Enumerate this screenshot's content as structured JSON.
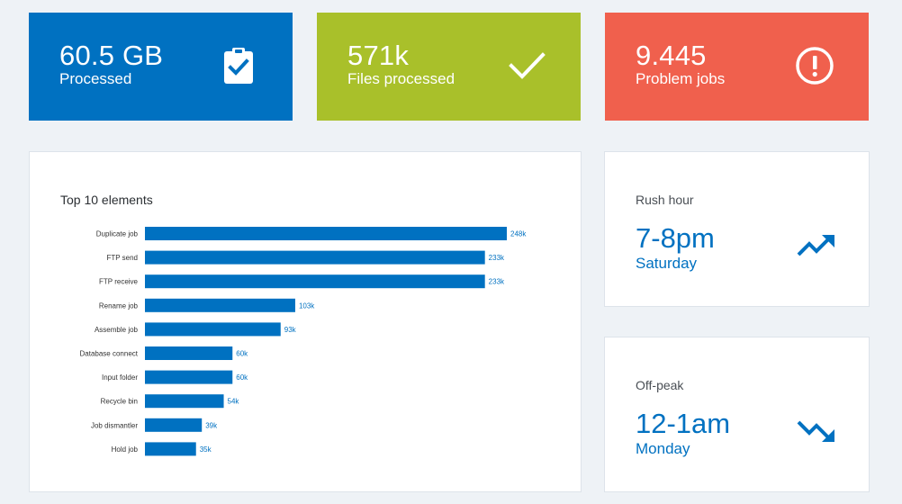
{
  "stats": [
    {
      "value": "60.5 GB",
      "label": "Processed",
      "icon": "clipboard-check-icon",
      "color": "#0071c1"
    },
    {
      "value": "571k",
      "label": "Files processed",
      "icon": "checkmark-icon",
      "color": "#a9c02a"
    },
    {
      "value": "9.445",
      "label": "Problem jobs",
      "icon": "alert-circle-icon",
      "color": "#f0604d"
    }
  ],
  "chart_data": {
    "type": "bar",
    "orientation": "horizontal",
    "title": "Top 10 elements",
    "categories": [
      "Duplicate job",
      "FTP send",
      "FTP receive",
      "Rename job",
      "Assemble job",
      "Database connect",
      "Input folder",
      "Recycle bin",
      "Job dismantler",
      "Hold job"
    ],
    "values": [
      248,
      233,
      233,
      103,
      93,
      60,
      60,
      54,
      39,
      35
    ],
    "value_labels": [
      "248k",
      "233k",
      "233k",
      "103k",
      "93k",
      "60k",
      "60k",
      "54k",
      "39k",
      "35k"
    ],
    "bar_color": "#0071c1",
    "grid": false,
    "legend": "none"
  },
  "rush_hour": {
    "title": "Rush hour",
    "value": "7-8pm",
    "sub": "Saturday",
    "icon": "trend-up-icon"
  },
  "off_peak": {
    "title": "Off-peak",
    "value": "12-1am",
    "sub": "Monday",
    "icon": "trend-down-icon"
  }
}
